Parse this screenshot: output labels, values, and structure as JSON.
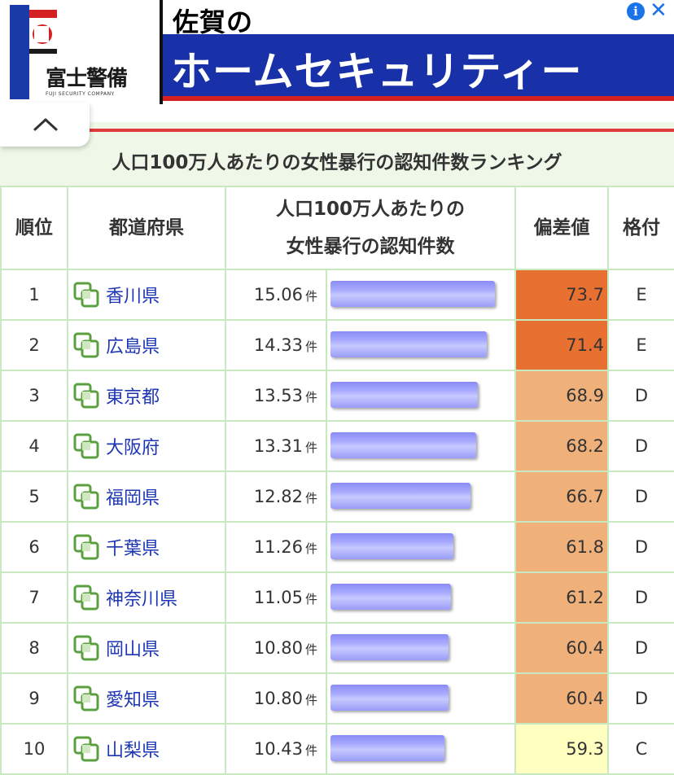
{
  "ad": {
    "logo_text": "富士警備",
    "logo_sub": "FUJI SECURITY COMPANY",
    "title": "佐賀の",
    "slogan": "ホームセキュリティー",
    "info_icon": "i",
    "close_icon": "✕"
  },
  "colors": {
    "grade_E": "#e87030",
    "grade_D": "#f0b07a",
    "grade_C": "#ffffc0",
    "bar": "#a9abff",
    "link": "#1d36b4"
  },
  "ranking": {
    "title": "人口100万人あたりの女性暴行の認知件数ランキング",
    "headers": {
      "rank": "順位",
      "prefecture": "都道府県",
      "metric_line1": "人口100万人あたりの",
      "metric_line2": "女性暴行の認知件数",
      "deviation": "偏差値",
      "grade": "格付"
    },
    "unit": "件",
    "rows": [
      {
        "rank": "1",
        "pref": "香川県",
        "value": "15.06",
        "num": 15.06,
        "dev": "73.7",
        "grade": "E"
      },
      {
        "rank": "2",
        "pref": "広島県",
        "value": "14.33",
        "num": 14.33,
        "dev": "71.4",
        "grade": "E"
      },
      {
        "rank": "3",
        "pref": "東京都",
        "value": "13.53",
        "num": 13.53,
        "dev": "68.9",
        "grade": "D"
      },
      {
        "rank": "4",
        "pref": "大阪府",
        "value": "13.31",
        "num": 13.31,
        "dev": "68.2",
        "grade": "D"
      },
      {
        "rank": "5",
        "pref": "福岡県",
        "value": "12.82",
        "num": 12.82,
        "dev": "66.7",
        "grade": "D"
      },
      {
        "rank": "6",
        "pref": "千葉県",
        "value": "11.26",
        "num": 11.26,
        "dev": "61.8",
        "grade": "D"
      },
      {
        "rank": "7",
        "pref": "神奈川県",
        "value": "11.05",
        "num": 11.05,
        "dev": "61.2",
        "grade": "D"
      },
      {
        "rank": "8",
        "pref": "岡山県",
        "value": "10.80",
        "num": 10.8,
        "dev": "60.4",
        "grade": "D"
      },
      {
        "rank": "9",
        "pref": "愛知県",
        "value": "10.80",
        "num": 10.8,
        "dev": "60.4",
        "grade": "D"
      },
      {
        "rank": "10",
        "pref": "山梨県",
        "value": "10.43",
        "num": 10.43,
        "dev": "59.3",
        "grade": "C"
      }
    ]
  }
}
